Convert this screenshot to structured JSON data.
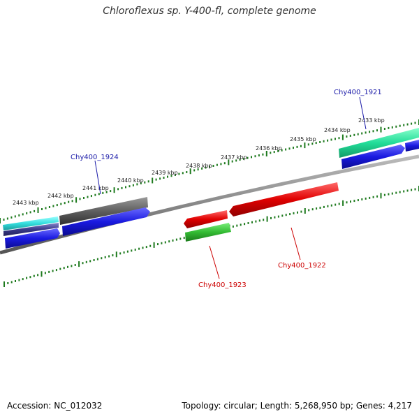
{
  "title": "Chloroflexus sp. Y-400-fl, complete genome",
  "footer": {
    "accession": "Accession: NC_012032",
    "summary": "Topology: circular; Length: 5,268,950 bp; Genes: 4,217"
  },
  "scale_labels": [
    "2433 kbp",
    "2434 kbp",
    "2435 kbp",
    "2436 kbp",
    "2437 kbp",
    "2438 kbp",
    "2439 kbp",
    "2440 kbp",
    "2441 kbp",
    "2442 kbp",
    "2443 kbp"
  ],
  "gene_labels": {
    "g1921": "Chy400_1921",
    "g1922": "Chy400_1922",
    "g1923": "Chy400_1923",
    "g1924": "Chy400_1924"
  },
  "colors": {
    "backbone": "#888888",
    "tick": "#1e7a1e",
    "label_blue": "#1a1aa8",
    "label_red": "#cc0000",
    "cds_blue": "#1a1ae0",
    "cds_red": "#e00000",
    "cds_green": "#33bb33",
    "cds_grey": "#606060",
    "cds_cyan": "#33dddd",
    "cds_teal": "#22dd99"
  }
}
